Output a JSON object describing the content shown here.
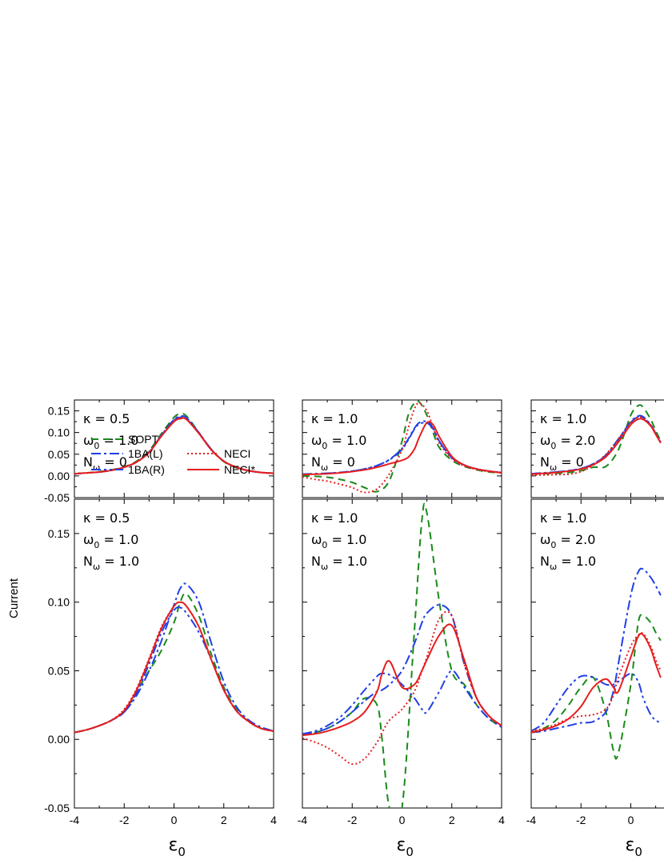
{
  "figure": {
    "ylabel": "Current",
    "xlabel_main": "ε",
    "xlabel_sub": "0"
  },
  "series_styles": [
    {
      "name": "SOPT",
      "color": "#1a8a1a",
      "dash": "9,6"
    },
    {
      "name": "1BA(L)",
      "color": "#1f3fe6",
      "dash": "12,4,3,4"
    },
    {
      "name": "1BA(R)",
      "color": "#1f3fe6",
      "dash": "12,4,3,4,3,4"
    },
    {
      "name": "NECI",
      "color": "#e61e1e",
      "dash": "2,3"
    },
    {
      "name": "NECI*",
      "color": "#e61e1e",
      "dash": ""
    }
  ],
  "legend": {
    "col1": [
      "SOPT",
      "1BA(L)",
      "1BA(R)"
    ],
    "col2": [
      "NECI",
      "NECI*"
    ]
  },
  "chart_data": [
    {
      "type": "line",
      "panel": "top-left",
      "xlim": [
        -4,
        4
      ],
      "ylim": [
        -0.05,
        0.175
      ],
      "xticks": [
        "-4",
        "-2",
        "0",
        "2",
        "4"
      ],
      "yticks": [
        "-0.05",
        "0.00",
        "0.05",
        "0.10",
        "0.15"
      ],
      "annotations": {
        "kappa": "κ = 0.5",
        "omega_main": "ω",
        "omega_sub": "0",
        "omega_val": " = 1.0",
        "n_main": "N",
        "n_sub": "ω",
        "n_val": " = 0"
      },
      "x": [
        -4,
        -3.5,
        -3,
        -2.5,
        -2,
        -1.5,
        -1,
        -0.5,
        0,
        0.25,
        0.5,
        1,
        1.5,
        2,
        2.5,
        3,
        3.5,
        4
      ],
      "series": [
        {
          "name": "SOPT",
          "values": [
            0.005,
            0.007,
            0.01,
            0.014,
            0.021,
            0.034,
            0.058,
            0.098,
            0.135,
            0.143,
            0.138,
            0.1,
            0.06,
            0.033,
            0.019,
            0.012,
            0.008,
            0.006
          ]
        },
        {
          "name": "1BA(L)",
          "values": [
            0.005,
            0.007,
            0.009,
            0.013,
            0.02,
            0.032,
            0.055,
            0.094,
            0.13,
            0.137,
            0.134,
            0.1,
            0.061,
            0.034,
            0.02,
            0.012,
            0.008,
            0.006
          ]
        },
        {
          "name": "1BA(R)",
          "values": [
            0.005,
            0.007,
            0.009,
            0.013,
            0.02,
            0.032,
            0.055,
            0.094,
            0.128,
            0.135,
            0.132,
            0.099,
            0.061,
            0.034,
            0.02,
            0.012,
            0.008,
            0.006
          ]
        },
        {
          "name": "NECI",
          "values": [
            0.005,
            0.007,
            0.009,
            0.013,
            0.02,
            0.032,
            0.055,
            0.093,
            0.126,
            0.133,
            0.131,
            0.098,
            0.06,
            0.034,
            0.02,
            0.012,
            0.008,
            0.006
          ]
        },
        {
          "name": "NECI*",
          "values": [
            0.005,
            0.007,
            0.009,
            0.013,
            0.02,
            0.032,
            0.054,
            0.092,
            0.125,
            0.132,
            0.13,
            0.098,
            0.06,
            0.034,
            0.02,
            0.012,
            0.008,
            0.006
          ]
        }
      ]
    },
    {
      "type": "line",
      "panel": "top-middle",
      "xlim": [
        -4,
        4
      ],
      "ylim": [
        -0.05,
        0.175
      ],
      "xticks": [
        "-4",
        "-2",
        "0",
        "2",
        "4"
      ],
      "yticks": [],
      "annotations": {
        "kappa": "κ = 1.0",
        "omega_main": "ω",
        "omega_sub": "0",
        "omega_val": " = 1.0",
        "n_main": "N",
        "n_sub": "ω",
        "n_val": " = 0"
      },
      "x": [
        -4,
        -3.5,
        -3,
        -2.5,
        -2,
        -1.5,
        -1,
        -0.5,
        0,
        0.25,
        0.5,
        0.7,
        1,
        1.25,
        1.5,
        2,
        2.5,
        3,
        3.5,
        4
      ],
      "series": [
        {
          "name": "SOPT",
          "values": [
            0.0,
            -0.001,
            -0.003,
            -0.008,
            -0.015,
            -0.027,
            -0.036,
            -0.01,
            0.08,
            0.14,
            0.168,
            0.17,
            0.14,
            0.1,
            0.065,
            0.036,
            0.022,
            0.014,
            0.009,
            0.007
          ]
        },
        {
          "name": "1BA(L)",
          "values": [
            0.004,
            0.005,
            0.006,
            0.008,
            0.011,
            0.016,
            0.024,
            0.038,
            0.063,
            0.085,
            0.11,
            0.123,
            0.125,
            0.11,
            0.08,
            0.042,
            0.025,
            0.016,
            0.011,
            0.008
          ]
        },
        {
          "name": "1BA(R)",
          "values": [
            0.004,
            0.005,
            0.006,
            0.008,
            0.011,
            0.016,
            0.024,
            0.037,
            0.061,
            0.083,
            0.108,
            0.12,
            0.122,
            0.108,
            0.079,
            0.042,
            0.025,
            0.016,
            0.011,
            0.008
          ]
        },
        {
          "name": "NECI",
          "values": [
            -0.002,
            -0.008,
            -0.012,
            -0.019,
            -0.027,
            -0.038,
            -0.03,
            0.005,
            0.06,
            0.11,
            0.155,
            0.168,
            0.15,
            0.112,
            0.075,
            0.04,
            0.023,
            0.015,
            0.01,
            0.008
          ]
        },
        {
          "name": "NECI*",
          "values": [
            0.003,
            0.004,
            0.005,
            0.007,
            0.01,
            0.014,
            0.02,
            0.028,
            0.036,
            0.043,
            0.062,
            0.09,
            0.123,
            0.118,
            0.09,
            0.045,
            0.025,
            0.016,
            0.011,
            0.007
          ]
        }
      ]
    },
    {
      "type": "line",
      "panel": "top-right",
      "xlim": [
        -4,
        4
      ],
      "ylim": [
        -0.05,
        0.175
      ],
      "xticks": [
        "-4",
        "-2",
        "0"
      ],
      "yticks": [],
      "annotations": {
        "kappa": "κ = 1.0",
        "omega_main": "ω",
        "omega_sub": "0",
        "omega_val": " = 2.0",
        "n_main": "N",
        "n_sub": "ω",
        "n_val": " = 0"
      },
      "x": [
        -4,
        -3.5,
        -3,
        -2.5,
        -2,
        -1.5,
        -1,
        -0.5,
        0,
        0.3,
        0.5,
        0.8,
        1,
        1.2
      ],
      "series": [
        {
          "name": "SOPT",
          "values": [
            0.004,
            0.005,
            0.006,
            0.008,
            0.012,
            0.02,
            0.022,
            0.06,
            0.14,
            0.162,
            0.158,
            0.13,
            0.105,
            0.08
          ]
        },
        {
          "name": "1BA(L)",
          "values": [
            0.005,
            0.007,
            0.009,
            0.012,
            0.017,
            0.028,
            0.048,
            0.085,
            0.125,
            0.138,
            0.136,
            0.118,
            0.098,
            0.078
          ]
        },
        {
          "name": "1BA(R)",
          "values": [
            0.005,
            0.007,
            0.009,
            0.012,
            0.017,
            0.028,
            0.047,
            0.083,
            0.123,
            0.136,
            0.134,
            0.117,
            0.097,
            0.077
          ]
        },
        {
          "name": "NECI",
          "values": [
            0.002,
            0.002,
            0.003,
            0.004,
            0.01,
            0.025,
            0.05,
            0.085,
            0.123,
            0.135,
            0.133,
            0.117,
            0.097,
            0.077
          ]
        },
        {
          "name": "NECI*",
          "values": [
            0.004,
            0.006,
            0.008,
            0.011,
            0.016,
            0.026,
            0.044,
            0.078,
            0.118,
            0.131,
            0.13,
            0.115,
            0.096,
            0.076
          ]
        }
      ]
    },
    {
      "type": "line",
      "panel": "bottom-left",
      "xlim": [
        -4,
        4
      ],
      "ylim": [
        -0.05,
        0.175
      ],
      "xticks": [
        "-4",
        "-2",
        "0",
        "2",
        "4"
      ],
      "yticks": [
        "-0.05",
        "0.00",
        "0.05",
        "0.10",
        "0.15"
      ],
      "annotations": {
        "kappa": "κ = 0.5",
        "omega_main": "ω",
        "omega_sub": "0",
        "omega_val": " = 1.0",
        "n_main": "N",
        "n_sub": "ω",
        "n_val": " = 1.0"
      },
      "x": [
        -4,
        -3.5,
        -3,
        -2.5,
        -2,
        -1.5,
        -1,
        -0.5,
        0,
        0.25,
        0.5,
        1,
        1.5,
        2,
        2.5,
        3,
        3.5,
        4
      ],
      "series": [
        {
          "name": "SOPT",
          "values": [
            0.005,
            0.007,
            0.01,
            0.014,
            0.02,
            0.035,
            0.05,
            0.065,
            0.085,
            0.1,
            0.106,
            0.09,
            0.062,
            0.038,
            0.022,
            0.013,
            0.008,
            0.006
          ]
        },
        {
          "name": "1BA(L)",
          "values": [
            0.005,
            0.007,
            0.01,
            0.014,
            0.02,
            0.032,
            0.05,
            0.072,
            0.098,
            0.11,
            0.113,
            0.1,
            0.07,
            0.042,
            0.024,
            0.014,
            0.009,
            0.006
          ]
        },
        {
          "name": "1BA(R)",
          "values": [
            0.005,
            0.007,
            0.01,
            0.014,
            0.02,
            0.034,
            0.055,
            0.078,
            0.094,
            0.096,
            0.092,
            0.078,
            0.058,
            0.036,
            0.021,
            0.013,
            0.008,
            0.006
          ]
        },
        {
          "name": "NECI",
          "values": [
            0.005,
            0.007,
            0.01,
            0.014,
            0.022,
            0.037,
            0.059,
            0.082,
            0.097,
            0.1,
            0.097,
            0.082,
            0.058,
            0.036,
            0.021,
            0.013,
            0.008,
            0.006
          ]
        },
        {
          "name": "NECI*",
          "values": [
            0.005,
            0.007,
            0.01,
            0.014,
            0.021,
            0.036,
            0.058,
            0.081,
            0.097,
            0.1,
            0.097,
            0.082,
            0.058,
            0.036,
            0.021,
            0.013,
            0.008,
            0.006
          ]
        }
      ]
    },
    {
      "type": "line",
      "panel": "bottom-middle",
      "xlim": [
        -4,
        4
      ],
      "ylim": [
        -0.05,
        0.175
      ],
      "xticks": [
        "-4",
        "-2",
        "0",
        "2",
        "4"
      ],
      "yticks": [],
      "annotations": {
        "kappa": "κ = 1.0",
        "omega_main": "ω",
        "omega_sub": "0",
        "omega_val": " = 1.0",
        "n_main": "N",
        "n_sub": "ω",
        "n_val": " = 1.0"
      },
      "x": [
        -4,
        -3.5,
        -3,
        -2.5,
        -2,
        -1.5,
        -1,
        -0.8,
        -0.5,
        0,
        0.5,
        0.8,
        1,
        1.5,
        2,
        2.5,
        3,
        3.5,
        4
      ],
      "series": [
        {
          "name": "SOPT",
          "values": [
            0.003,
            0.005,
            0.008,
            0.013,
            0.02,
            0.03,
            0.025,
            0.0,
            -0.05,
            -0.05,
            0.08,
            0.16,
            0.165,
            0.1,
            0.05,
            0.04,
            0.025,
            0.015,
            0.009
          ]
        },
        {
          "name": "1BA(L)",
          "values": [
            0.003,
            0.005,
            0.008,
            0.013,
            0.02,
            0.028,
            0.035,
            0.036,
            0.04,
            0.05,
            0.07,
            0.085,
            0.092,
            0.098,
            0.09,
            0.055,
            0.03,
            0.017,
            0.01
          ]
        },
        {
          "name": "1BA(R)",
          "values": [
            0.004,
            0.006,
            0.01,
            0.016,
            0.025,
            0.036,
            0.046,
            0.048,
            0.047,
            0.04,
            0.03,
            0.022,
            0.02,
            0.035,
            0.05,
            0.038,
            0.025,
            0.015,
            0.009
          ]
        },
        {
          "name": "NECI",
          "values": [
            0.001,
            -0.002,
            -0.006,
            -0.012,
            -0.018,
            -0.014,
            -0.002,
            0.005,
            0.014,
            0.022,
            0.035,
            0.05,
            0.06,
            0.088,
            0.09,
            0.055,
            0.03,
            0.017,
            0.01
          ]
        },
        {
          "name": "NECI*",
          "values": [
            0.003,
            0.004,
            0.006,
            0.009,
            0.013,
            0.02,
            0.035,
            0.048,
            0.057,
            0.038,
            0.04,
            0.05,
            0.058,
            0.076,
            0.083,
            0.058,
            0.03,
            0.017,
            0.01
          ]
        }
      ]
    },
    {
      "type": "line",
      "panel": "bottom-right",
      "xlim": [
        -4,
        4
      ],
      "ylim": [
        -0.05,
        0.175
      ],
      "xticks": [
        "-4",
        "-2",
        "0"
      ],
      "yticks": [],
      "annotations": {
        "kappa": "κ = 1.0",
        "omega_main": "ω",
        "omega_sub": "0",
        "omega_val": " = 2.0",
        "n_main": "N",
        "n_sub": "ω",
        "n_val": " = 1.0"
      },
      "x": [
        -4,
        -3.5,
        -3,
        -2.5,
        -2,
        -1.5,
        -1,
        -0.7,
        -0.5,
        0,
        0.3,
        0.5,
        0.8,
        1,
        1.2
      ],
      "series": [
        {
          "name": "SOPT",
          "values": [
            0.005,
            0.008,
            0.014,
            0.025,
            0.038,
            0.045,
            0.02,
            -0.008,
            -0.01,
            0.04,
            0.085,
            0.09,
            0.085,
            0.078,
            0.072
          ]
        },
        {
          "name": "1BA(L)",
          "values": [
            0.005,
            0.006,
            0.008,
            0.01,
            0.012,
            0.013,
            0.02,
            0.035,
            0.055,
            0.105,
            0.122,
            0.124,
            0.118,
            0.112,
            0.105
          ]
        },
        {
          "name": "1BA(R)",
          "values": [
            0.006,
            0.012,
            0.025,
            0.038,
            0.046,
            0.045,
            0.04,
            0.04,
            0.042,
            0.048,
            0.042,
            0.03,
            0.018,
            0.014,
            0.012
          ]
        },
        {
          "name": "NECI",
          "values": [
            0.006,
            0.008,
            0.011,
            0.015,
            0.017,
            0.018,
            0.022,
            0.032,
            0.045,
            0.068,
            0.076,
            0.077,
            0.068,
            0.058,
            0.05
          ]
        },
        {
          "name": "NECI*",
          "values": [
            0.005,
            0.007,
            0.01,
            0.015,
            0.024,
            0.038,
            0.044,
            0.038,
            0.035,
            0.06,
            0.075,
            0.076,
            0.066,
            0.055,
            0.045
          ]
        }
      ]
    }
  ]
}
